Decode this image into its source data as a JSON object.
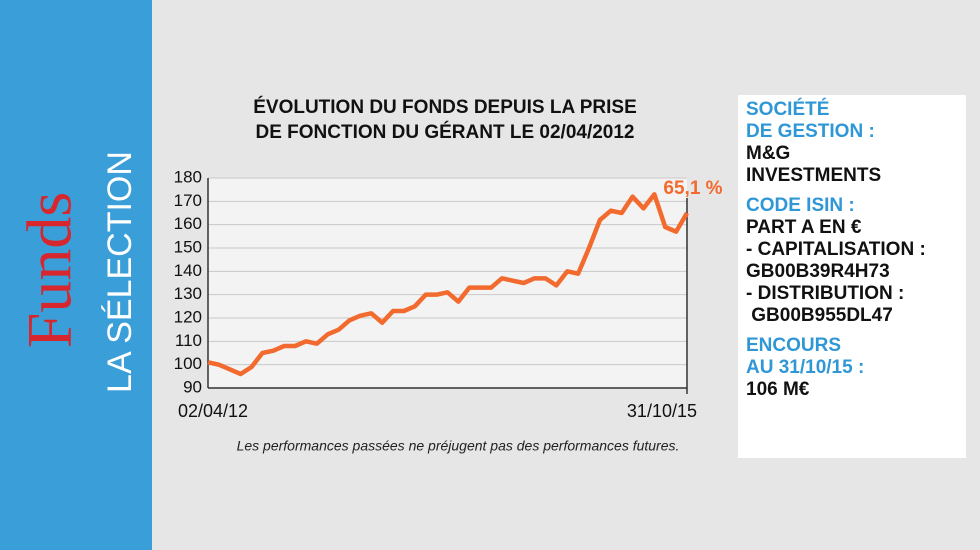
{
  "sidebar": {
    "title": "Funds",
    "subtitle": "LA SÉLECTION"
  },
  "chart_data": {
    "type": "line",
    "title": [
      "ÉVOLUTION DU FONDS DEPUIS LA PRISE",
      "DE FONCTION DU GÉRANT LE 02/04/2012"
    ],
    "categories": [
      "02/04/12",
      null,
      null,
      null,
      null,
      null,
      null,
      null,
      null,
      null,
      null,
      null,
      null,
      null,
      null,
      null,
      null,
      null,
      null,
      null,
      null,
      null,
      null,
      null,
      null,
      null,
      null,
      null,
      null,
      null,
      null,
      null,
      null,
      null,
      null,
      null,
      null,
      null,
      null,
      null,
      null,
      null,
      null,
      null,
      "31/10/15"
    ],
    "series": [
      {
        "name": null,
        "color": "#f26a2e",
        "values": [
          101,
          100,
          98,
          96,
          99,
          105,
          106,
          108,
          108,
          110,
          109,
          113,
          115,
          119,
          121,
          122,
          118,
          123,
          123,
          125,
          130,
          130,
          131,
          127,
          133,
          133,
          133,
          137,
          136,
          135,
          137,
          137,
          134,
          140,
          139,
          150,
          162,
          166,
          165,
          172,
          167,
          173,
          159,
          157,
          165
        ]
      }
    ],
    "ylim": [
      90,
      180
    ],
    "yticks": [
      90,
      100,
      110,
      120,
      130,
      140,
      150,
      160,
      170,
      180
    ],
    "grid": true,
    "annotation": "65,1 %",
    "note": "Les performances passées ne préjugent pas des performances futures."
  },
  "info": [
    {
      "heading": [
        "SOCIÉTÉ",
        "DE GESTION :"
      ],
      "body": [
        "M&G",
        "INVESTMENTS"
      ]
    },
    {
      "heading": [
        "CODE ISIN :"
      ],
      "body": [
        "PART A EN €",
        "- CAPITALISATION :",
        "GB00B39R4H73",
        "- DISTRIBUTION :",
        " GB00B955DL47"
      ]
    },
    {
      "heading": [
        "ENCOURS",
        "AU 31/10/15 :"
      ],
      "body": [
        "106 M€"
      ]
    }
  ]
}
